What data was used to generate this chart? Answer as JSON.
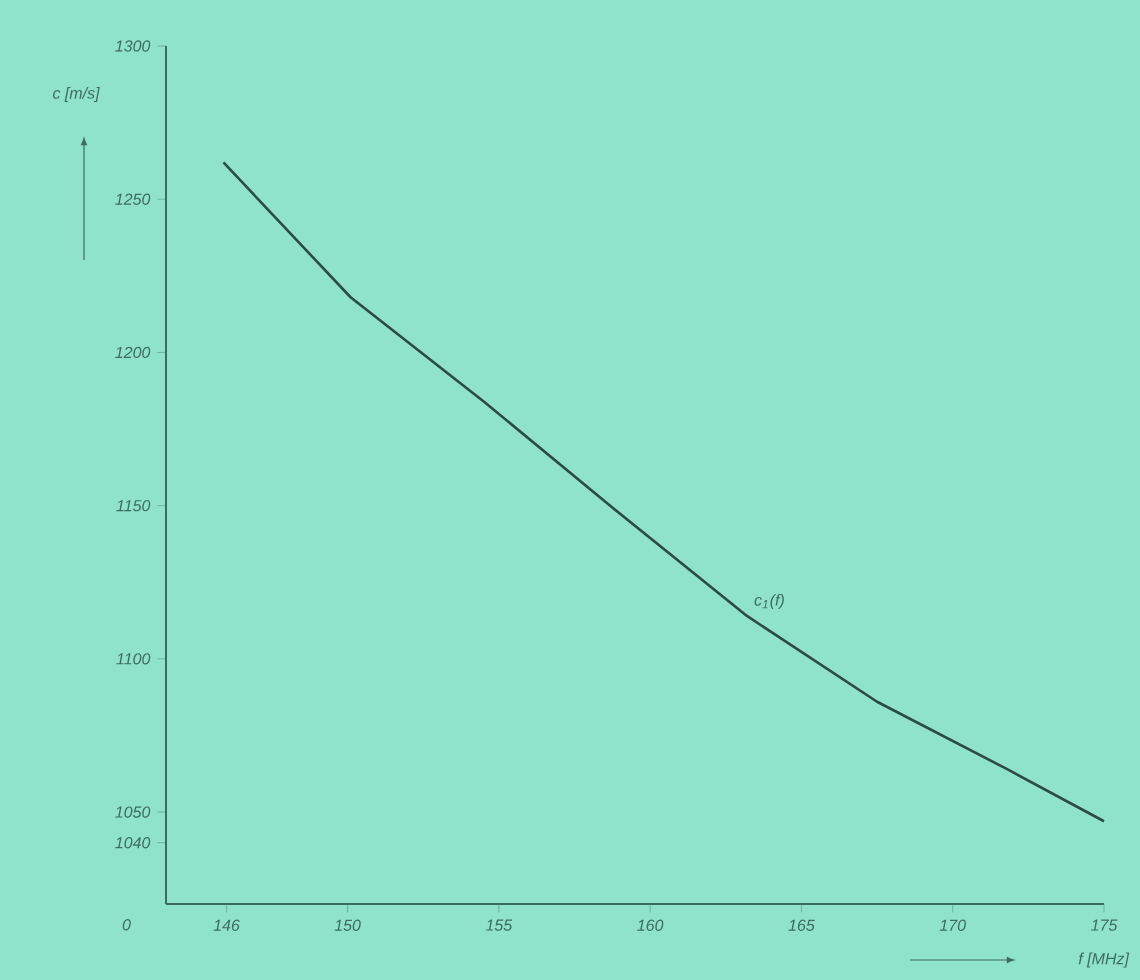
{
  "chart_data": {
    "type": "line",
    "xlabel": "f [MHz]",
    "ylabel": "c [m/s]",
    "annotations": [
      "0"
    ],
    "x": [
      145.9,
      150.1,
      154.5,
      158.8,
      163.2,
      167.5,
      171.8,
      175
    ],
    "series": [
      {
        "name": "c$_{1}$(f)",
        "color": "#2d4a45",
        "values": [
          1262,
          1218,
          1184,
          1149,
          1114,
          1086,
          1064,
          1047
        ]
      }
    ],
    "xlim": [
      144,
      175
    ],
    "ylim": [
      1020,
      1300
    ],
    "xticks": [
      146,
      150,
      155,
      160,
      165,
      170,
      175
    ],
    "yticks": [
      1040,
      1050,
      1100,
      1150,
      1200,
      1250,
      1300
    ],
    "grid": false,
    "legend": false,
    "marker": "none",
    "line_style": "solid"
  }
}
